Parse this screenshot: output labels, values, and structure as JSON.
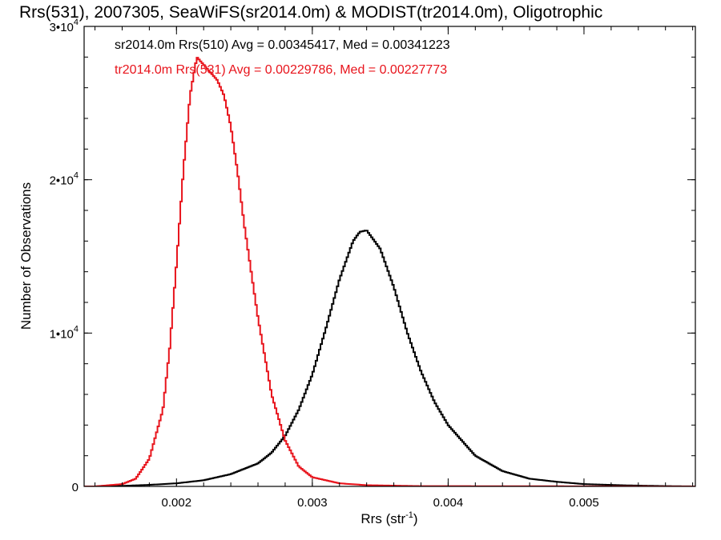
{
  "chart_data": {
    "type": "line",
    "title": "Rrs(531), 2007305, SeaWiFS(sr2014.0m) & MODIST(tr2014.0m), Oligotrophic",
    "xlabel_main": "Rrs (str",
    "xlabel_sup": "-1",
    "xlabel_end": ")",
    "ylabel": "Number of Observations",
    "xlim": [
      0.00132,
      0.00582
    ],
    "ylim": [
      0,
      30000
    ],
    "grid": false,
    "legend_placement": "top-left",
    "x_ticks": [
      {
        "value": 0.002,
        "label": "0.002"
      },
      {
        "value": 0.003,
        "label": "0.003"
      },
      {
        "value": 0.004,
        "label": "0.004"
      },
      {
        "value": 0.005,
        "label": "0.005"
      }
    ],
    "y_ticks": [
      {
        "value": 0,
        "base": "0",
        "exp": ""
      },
      {
        "value": 10000,
        "base": "1•10",
        "exp": "4"
      },
      {
        "value": 20000,
        "base": "2•10",
        "exp": "4"
      },
      {
        "value": 30000,
        "base": "3•10",
        "exp": "4"
      }
    ],
    "series": [
      {
        "name": "sr2014.0m Rrs(510) Avg = 0.00345417, Med = 0.00341223",
        "color": "#000000",
        "x": [
          0.0015,
          0.0018,
          0.002,
          0.0022,
          0.0024,
          0.0026,
          0.0027,
          0.0028,
          0.0029,
          0.003,
          0.0031,
          0.0032,
          0.0033,
          0.00335,
          0.0034,
          0.0035,
          0.0036,
          0.0037,
          0.0038,
          0.0039,
          0.004,
          0.0042,
          0.0044,
          0.0046,
          0.0048,
          0.005,
          0.0053,
          0.0056,
          0.00582
        ],
        "y": [
          0,
          100,
          200,
          400,
          800,
          1500,
          2200,
          3300,
          5000,
          7300,
          10300,
          13500,
          16000,
          16600,
          16700,
          15500,
          13000,
          10000,
          7500,
          5500,
          4000,
          2000,
          1000,
          500,
          300,
          150,
          70,
          20,
          0
        ]
      },
      {
        "name": "tr2014.0m Rrs(531) Avg = 0.00229786, Med = 0.00227773",
        "color": "#e8141c",
        "x": [
          0.0014,
          0.0016,
          0.0017,
          0.0018,
          0.0019,
          0.00195,
          0.002,
          0.00205,
          0.0021,
          0.00215,
          0.0022,
          0.00225,
          0.0023,
          0.00235,
          0.0024,
          0.00245,
          0.0025,
          0.0026,
          0.0027,
          0.0028,
          0.0029,
          0.003,
          0.0032,
          0.0034,
          0.0038,
          0.00582
        ],
        "y": [
          0,
          150,
          500,
          1800,
          5000,
          9000,
          14500,
          20500,
          25500,
          28000,
          27500,
          27000,
          26500,
          25500,
          23500,
          20500,
          17000,
          11000,
          6000,
          3000,
          1300,
          600,
          200,
          80,
          20,
          0
        ]
      }
    ]
  }
}
